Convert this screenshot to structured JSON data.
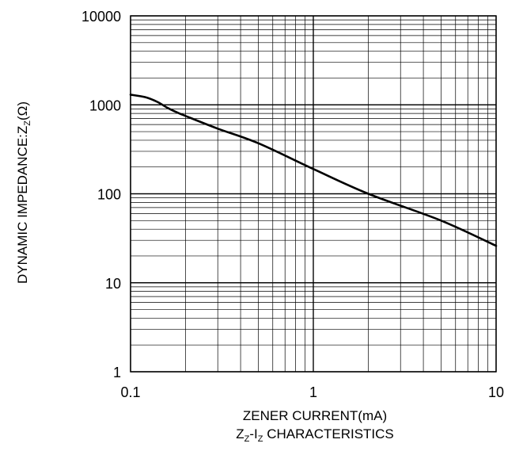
{
  "chart_data": {
    "type": "line",
    "title": "",
    "xlabel": "ZENER CURRENT(mA)",
    "ylabel": {
      "main": "DYNAMIC IMPEDANCE:Z",
      "sub": "Z",
      "unit": "(Ω)"
    },
    "caption": {
      "z": "Z",
      "z_sub": "Z",
      "dash": "-I",
      "i_sub": "Z",
      "rest": " CHARACTERISTICS"
    },
    "x_scale": "log",
    "y_scale": "log",
    "xlim": [
      0.1,
      10
    ],
    "ylim": [
      1,
      10000
    ],
    "x_ticks": [
      0.1,
      1,
      10
    ],
    "x_tick_labels": [
      "0.1",
      "1",
      "10"
    ],
    "y_ticks": [
      1,
      10,
      100,
      1000,
      10000
    ],
    "y_tick_labels": [
      "1",
      "10",
      "100",
      "1000",
      "10000"
    ],
    "grid": "major and minor (log)",
    "series": [
      {
        "color": "#000000",
        "x": [
          0.1,
          0.12,
          0.14,
          0.16,
          0.18,
          0.2,
          0.3,
          0.5,
          1,
          2,
          5,
          10
        ],
        "y": [
          1300,
          1220,
          1080,
          920,
          820,
          750,
          540,
          370,
          190,
          100,
          50,
          26
        ]
      }
    ]
  }
}
